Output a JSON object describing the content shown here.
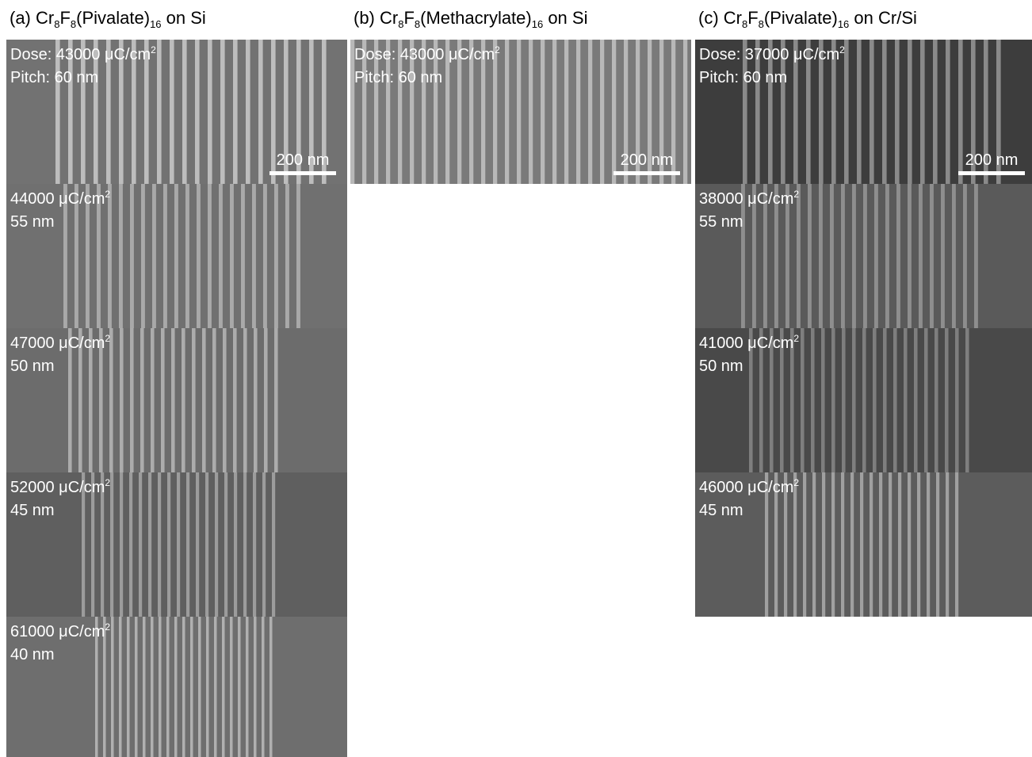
{
  "columns": [
    {
      "title": [
        "(a) Cr",
        "8",
        "F",
        "8",
        "(Pivalate)",
        "16",
        " on Si"
      ],
      "panels": [
        {
          "dose": [
            "Dose: 43000 μC/cm",
            "2"
          ],
          "pitch": "Pitch: 60 nm",
          "scale_bar": "200 nm"
        },
        {
          "dose": [
            "44000 μC/cm",
            "2"
          ],
          "pitch": "55 nm"
        },
        {
          "dose": [
            "47000 μC/cm",
            "2"
          ],
          "pitch": "50 nm"
        },
        {
          "dose": [
            "52000 μC/cm",
            "2"
          ],
          "pitch": "45 nm"
        },
        {
          "dose": [
            "61000 μC/cm",
            "2"
          ],
          "pitch": "40 nm"
        }
      ]
    },
    {
      "title": [
        "(b) Cr",
        "8",
        "F",
        "8",
        "(Methacrylate)",
        "16",
        " on Si"
      ],
      "panels": [
        {
          "dose": [
            "Dose: 43000 μC/cm",
            "2"
          ],
          "pitch": "Pitch: 60 nm",
          "scale_bar": "200 nm"
        }
      ]
    },
    {
      "title": [
        "(c) Cr",
        "8",
        "F",
        "8",
        "(Pivalate)",
        "16",
        " on Cr/Si"
      ],
      "panels": [
        {
          "dose": [
            "Dose: 37000 μC/cm",
            "2"
          ],
          "pitch": "Pitch: 60 nm",
          "scale_bar": "200 nm"
        },
        {
          "dose": [
            "38000 μC/cm",
            "2"
          ],
          "pitch": "55 nm"
        },
        {
          "dose": [
            "41000 μC/cm",
            "2"
          ],
          "pitch": "50 nm"
        },
        {
          "dose": [
            "46000 μC/cm",
            "2"
          ],
          "pitch": "45 nm"
        }
      ]
    }
  ]
}
